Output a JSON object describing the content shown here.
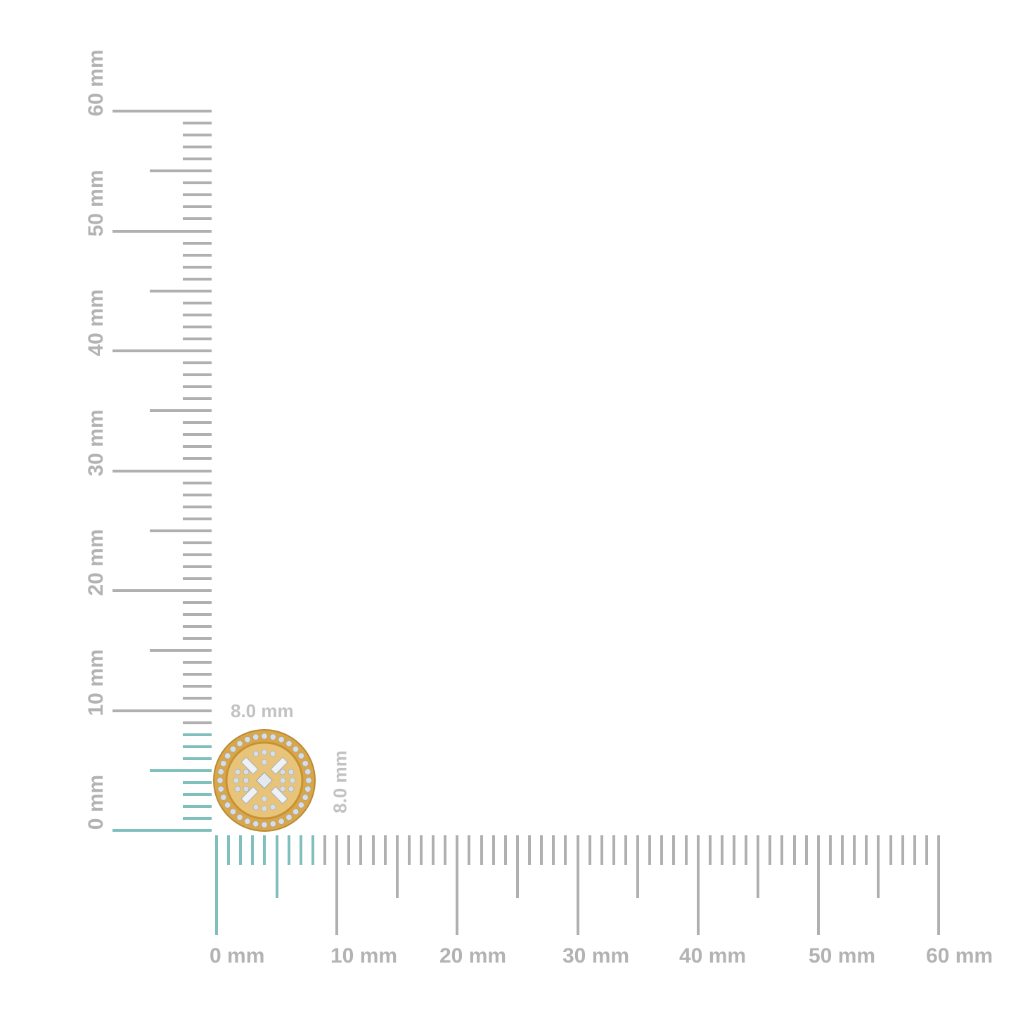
{
  "ruler": {
    "unit": "mm",
    "min": 0,
    "max": 60,
    "major_step": 10,
    "half_step": 5,
    "minor_step": 1,
    "highlight_to": 8,
    "colors": {
      "tick": "#b0b0b0",
      "highlight": "#7fbfbc"
    },
    "horizontal_labels": [
      "0 mm",
      "10 mm",
      "20 mm",
      "30 mm",
      "40 mm",
      "50 mm",
      "60 mm"
    ],
    "vertical_labels": [
      "0 mm",
      "10 mm",
      "20 mm",
      "30 mm",
      "40 mm",
      "50 mm",
      "60 mm"
    ]
  },
  "product": {
    "width_label": "8.0 mm",
    "height_label": "8.0 mm",
    "width_mm": 8.0,
    "height_mm": 8.0,
    "colors": {
      "gold": "#e0b25a",
      "stone": "#d6dde6"
    }
  }
}
